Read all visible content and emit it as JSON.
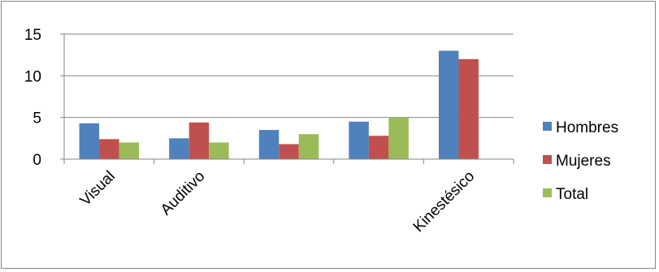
{
  "chart_data": {
    "type": "bar",
    "title": "",
    "xlabel": "",
    "ylabel": "",
    "categories": [
      "Visual",
      "Auditivo",
      "",
      "",
      "Kinestésico"
    ],
    "series": [
      {
        "name": "Hombres",
        "color": "#4F81BD",
        "values": [
          4.3,
          2.5,
          3.5,
          4.5,
          13
        ]
      },
      {
        "name": "Mujeres",
        "color": "#C0504D",
        "values": [
          2.4,
          4.4,
          1.8,
          2.8,
          12
        ]
      },
      {
        "name": "Total",
        "color": "#9BBB59",
        "values": [
          2.0,
          2.0,
          3.0,
          5.0,
          0
        ]
      }
    ],
    "ylim": [
      0,
      15
    ],
    "yticks": [
      0,
      5,
      10,
      15
    ],
    "grid": true,
    "legend_position": "right"
  }
}
